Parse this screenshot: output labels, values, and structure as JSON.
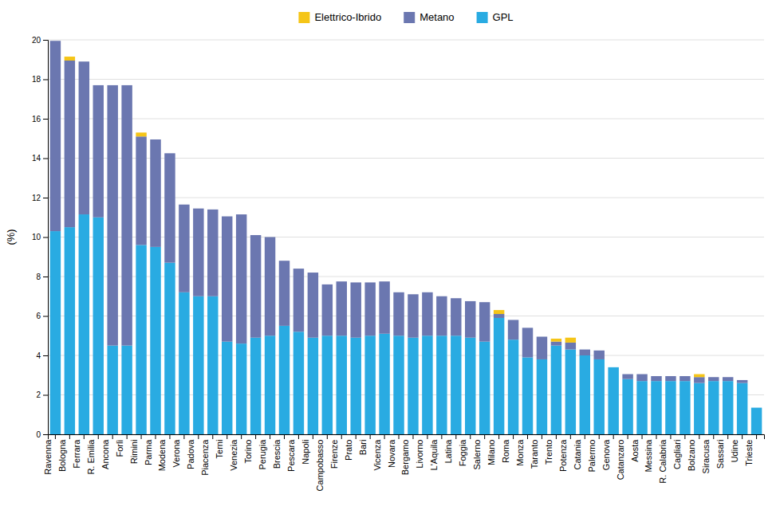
{
  "chart_data": {
    "type": "bar",
    "stacked": true,
    "categories": [
      "Ravenna",
      "Bologna",
      "Ferrara",
      "R. Emilia",
      "Ancona",
      "Forlì",
      "Rimini",
      "Parma",
      "Modena",
      "Verona",
      "Padova",
      "Piacenza",
      "Terni",
      "Venezia",
      "Torino",
      "Perugia",
      "Brescia",
      "Pescara",
      "Napoli",
      "Campobasso",
      "Firenze",
      "Prato",
      "Bari",
      "Vicenza",
      "Novara",
      "Bergamo",
      "Livorno",
      "L'Aquila",
      "Latina",
      "Foggia",
      "Salerno",
      "Milano",
      "Roma",
      "Monza",
      "Taranto",
      "Trento",
      "Potenza",
      "Catania",
      "Palermo",
      "Genova",
      "Catanzaro",
      "Aosta",
      "Messina",
      "R. Calabria",
      "Cagliari",
      "Bolzano",
      "Siracusa",
      "Sassari",
      "Udine",
      "Trieste"
    ],
    "series": [
      {
        "name": "GPL",
        "color": "#29ABE2",
        "values": [
          10.3,
          10.5,
          11.15,
          11.0,
          4.5,
          4.5,
          9.6,
          9.5,
          8.7,
          7.2,
          7.0,
          7.0,
          4.7,
          4.6,
          4.9,
          5.0,
          5.5,
          5.2,
          4.9,
          5.0,
          5.0,
          4.9,
          5.0,
          5.1,
          5.0,
          4.9,
          5.0,
          5.0,
          5.0,
          4.9,
          4.7,
          5.9,
          4.8,
          3.9,
          3.8,
          4.5,
          4.3,
          4.0,
          3.8,
          3.4,
          2.8,
          2.7,
          2.7,
          2.7,
          2.7,
          2.6,
          2.7,
          2.7,
          2.6,
          1.35
        ]
      },
      {
        "name": "Metano",
        "color": "#6B77B0",
        "values": [
          9.65,
          8.45,
          7.75,
          6.7,
          13.2,
          13.2,
          5.5,
          5.45,
          5.55,
          4.45,
          4.45,
          4.4,
          6.35,
          6.55,
          5.2,
          5.0,
          3.3,
          3.2,
          3.3,
          2.6,
          2.75,
          2.8,
          2.7,
          2.65,
          2.2,
          2.2,
          2.2,
          2.0,
          1.9,
          1.85,
          2.0,
          0.2,
          1.0,
          1.5,
          1.15,
          0.2,
          0.35,
          0.3,
          0.45,
          0.0,
          0.25,
          0.35,
          0.25,
          0.25,
          0.25,
          0.3,
          0.2,
          0.2,
          0.15,
          0.0
        ]
      },
      {
        "name": "Elettrico-Ibrido",
        "color": "#F5C518",
        "values": [
          0.0,
          0.2,
          0.0,
          0.0,
          0.0,
          0.0,
          0.2,
          0.0,
          0.0,
          0.0,
          0.0,
          0.0,
          0.0,
          0.0,
          0.0,
          0.0,
          0.0,
          0.0,
          0.0,
          0.0,
          0.0,
          0.0,
          0.0,
          0.0,
          0.0,
          0.0,
          0.0,
          0.0,
          0.0,
          0.0,
          0.0,
          0.2,
          0.0,
          0.0,
          0.0,
          0.15,
          0.25,
          0.0,
          0.0,
          0.0,
          0.0,
          0.0,
          0.0,
          0.0,
          0.0,
          0.15,
          0.0,
          0.0,
          0.0,
          0.0
        ]
      }
    ],
    "ylabel": "(%)",
    "ylim": [
      0,
      20
    ],
    "yticks": [
      0,
      2,
      4,
      6,
      8,
      10,
      12,
      14,
      16,
      18,
      20
    ],
    "grid": true,
    "legend": "top"
  }
}
